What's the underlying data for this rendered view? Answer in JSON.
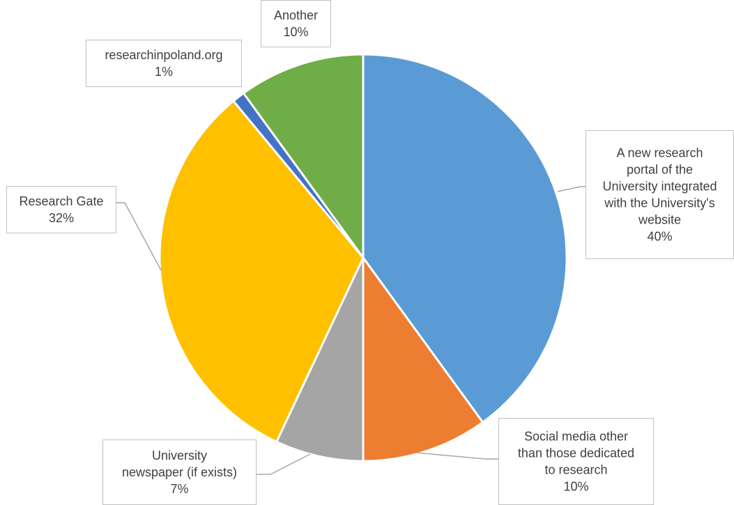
{
  "chart_data": {
    "type": "pie",
    "title": "",
    "slices": [
      {
        "label": [
          "A new research",
          "portal of the",
          "University integrated",
          "with the University's",
          "website"
        ],
        "value": 40,
        "pct": "40%",
        "color": "#5B9BD5"
      },
      {
        "label": [
          "Social media other",
          "than those dedicated",
          "to research"
        ],
        "value": 10,
        "pct": "10%",
        "color": "#ED7D31"
      },
      {
        "label": [
          "University",
          "newspaper (if exists)"
        ],
        "value": 7,
        "pct": "7%",
        "color": "#A5A5A5"
      },
      {
        "label": [
          "Research Gate"
        ],
        "value": 32,
        "pct": "32%",
        "color": "#FFC000"
      },
      {
        "label": [
          "researchinpoland.org"
        ],
        "value": 1,
        "pct": "1%",
        "color": "#4472C4"
      },
      {
        "label": [
          "Another"
        ],
        "value": 10,
        "pct": "10%",
        "color": "#70AD47"
      }
    ]
  }
}
